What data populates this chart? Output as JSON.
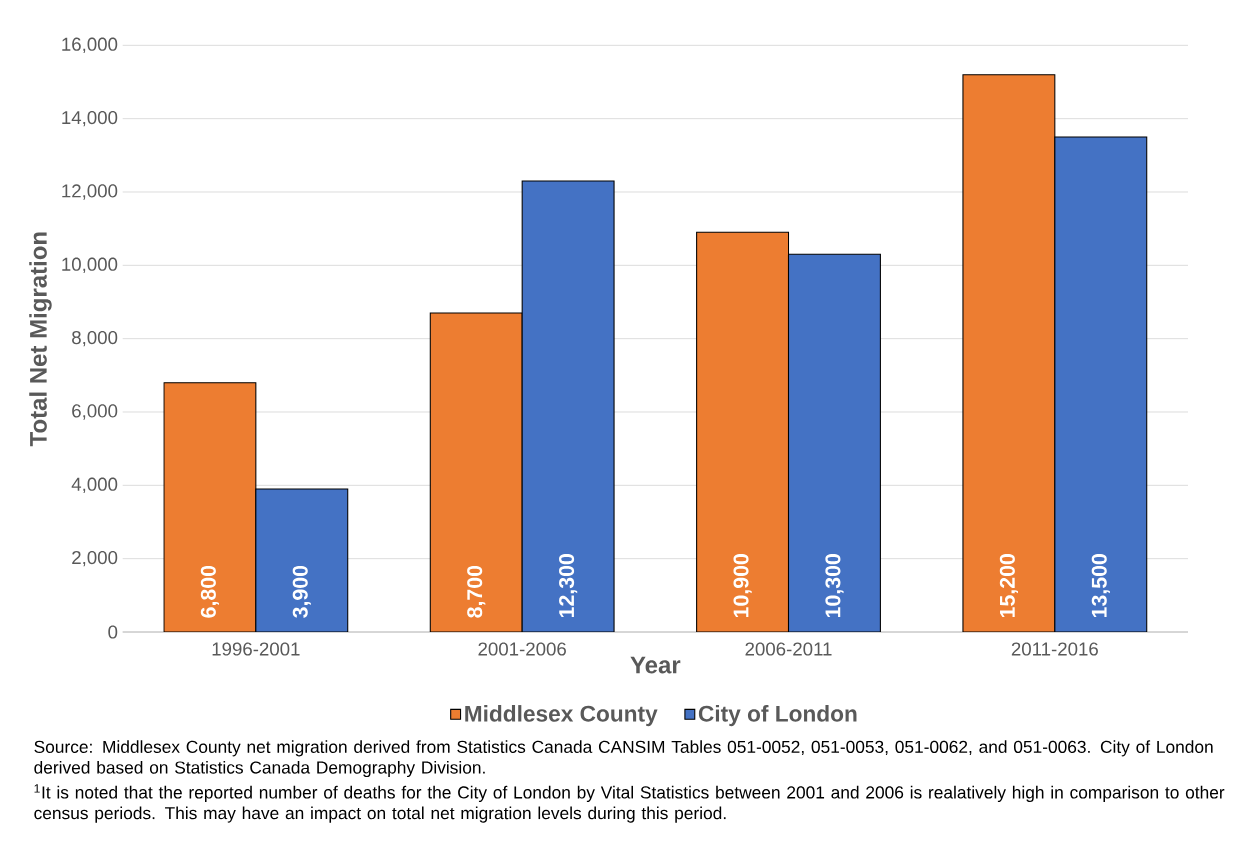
{
  "chart_data": {
    "type": "bar",
    "xlabel": "Year",
    "ylabel": "Total Net Migration",
    "categories": [
      "1996-2001",
      "2001-2006",
      "2006-2011",
      "2011-2016"
    ],
    "series": [
      {
        "name": "Middlesex County",
        "color": "#ed7d31",
        "values": [
          6800,
          8700,
          10900,
          15200
        ],
        "value_labels": [
          "6,800",
          "8,700",
          "10,900",
          "15,200"
        ]
      },
      {
        "name": "City of London",
        "color": "#4472c4",
        "values": [
          3900,
          12300,
          10300,
          13500
        ],
        "value_labels": [
          "3,900",
          "12,300",
          "10,300",
          "13,500"
        ]
      }
    ],
    "ylim": [
      0,
      16000
    ],
    "yticks": [
      {
        "value": 0,
        "label": "0"
      },
      {
        "value": 2000,
        "label": "2,000"
      },
      {
        "value": 4000,
        "label": "4,000"
      },
      {
        "value": 6000,
        "label": "6,000"
      },
      {
        "value": 8000,
        "label": "8,000"
      },
      {
        "value": 10000,
        "label": "10,000"
      },
      {
        "value": 12000,
        "label": "12,000"
      },
      {
        "value": 14000,
        "label": "14,000"
      },
      {
        "value": 16000,
        "label": "16,000"
      }
    ],
    "grid": "y",
    "legend": "bottom",
    "annotations": [
      "Source:  Middlesex County net migration derived from Statistics Canada CANSIM Tables 051-0052, 051-0053, 051-0062, and 051-0063.  City of London derived based on Statistics Canada Demography Division.",
      "$^{1}$It is noted that the reported number of deaths for the City of London by Vital Statistics between 2001 and 2006 is realatively high in comparison to other census periods.  This may have an impact on total net migration levels during this period."
    ]
  }
}
